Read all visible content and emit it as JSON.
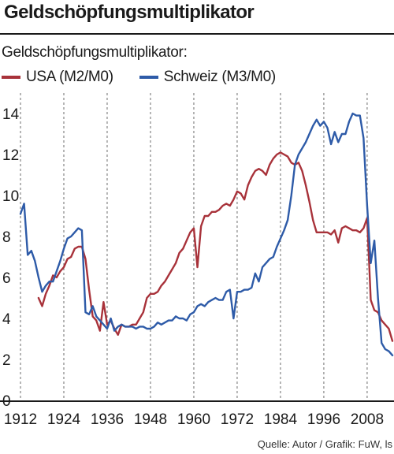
{
  "title": "Geldschöpfungsmultiplikator",
  "source": "Quelle: Autor / Grafik: FuW, ls",
  "colors": {
    "usa": "#a8323a",
    "schweiz": "#2e5ba8"
  },
  "chart_data": {
    "type": "line",
    "subtitle": "Geldschöpfungsmultiplikator:",
    "xlim": [
      1912,
      2015
    ],
    "ylim": [
      0,
      15
    ],
    "x_ticks": [
      1912,
      1924,
      1936,
      1948,
      1960,
      1972,
      1984,
      1996,
      2008
    ],
    "y_ticks": [
      0,
      2,
      4,
      6,
      8,
      10,
      12,
      14
    ],
    "grid": "vertical-dashed",
    "legend_position": "top-left",
    "series": [
      {
        "name": "USA (M2/M0)",
        "color": "#a8323a",
        "points": [
          [
            1917,
            5.0
          ],
          [
            1918,
            4.6
          ],
          [
            1919,
            5.2
          ],
          [
            1920,
            5.6
          ],
          [
            1921,
            6.1
          ],
          [
            1922,
            6.0
          ],
          [
            1923,
            6.3
          ],
          [
            1924,
            6.5
          ],
          [
            1925,
            6.9
          ],
          [
            1926,
            7.0
          ],
          [
            1927,
            7.4
          ],
          [
            1928,
            7.5
          ],
          [
            1929,
            7.5
          ],
          [
            1930,
            6.9
          ],
          [
            1931,
            5.4
          ],
          [
            1932,
            4.1
          ],
          [
            1933,
            3.9
          ],
          [
            1934,
            3.4
          ],
          [
            1935,
            4.8
          ],
          [
            1936,
            3.7
          ],
          [
            1937,
            3.9
          ],
          [
            1938,
            3.5
          ],
          [
            1939,
            3.2
          ],
          [
            1940,
            3.7
          ],
          [
            1941,
            3.6
          ],
          [
            1942,
            3.6
          ],
          [
            1943,
            3.7
          ],
          [
            1944,
            3.7
          ],
          [
            1945,
            4.0
          ],
          [
            1946,
            4.3
          ],
          [
            1947,
            5.0
          ],
          [
            1948,
            5.2
          ],
          [
            1949,
            5.2
          ],
          [
            1950,
            5.3
          ],
          [
            1951,
            5.6
          ],
          [
            1952,
            5.8
          ],
          [
            1953,
            6.1
          ],
          [
            1954,
            6.4
          ],
          [
            1955,
            6.7
          ],
          [
            1956,
            7.2
          ],
          [
            1957,
            7.4
          ],
          [
            1958,
            7.8
          ],
          [
            1959,
            8.2
          ],
          [
            1960,
            8.4
          ],
          [
            1961,
            6.5
          ],
          [
            1962,
            8.5
          ],
          [
            1963,
            9.0
          ],
          [
            1964,
            9.0
          ],
          [
            1965,
            9.2
          ],
          [
            1966,
            9.2
          ],
          [
            1967,
            9.3
          ],
          [
            1968,
            9.5
          ],
          [
            1969,
            9.6
          ],
          [
            1970,
            9.5
          ],
          [
            1971,
            9.8
          ],
          [
            1972,
            10.2
          ],
          [
            1973,
            10.1
          ],
          [
            1974,
            9.8
          ],
          [
            1975,
            10.5
          ],
          [
            1976,
            10.9
          ],
          [
            1977,
            11.2
          ],
          [
            1978,
            11.3
          ],
          [
            1979,
            11.2
          ],
          [
            1980,
            11.0
          ],
          [
            1981,
            11.5
          ],
          [
            1982,
            11.8
          ],
          [
            1983,
            12.0
          ],
          [
            1984,
            12.1
          ],
          [
            1985,
            12.0
          ],
          [
            1986,
            11.9
          ],
          [
            1987,
            11.6
          ],
          [
            1988,
            11.5
          ],
          [
            1989,
            11.6
          ],
          [
            1990,
            11.2
          ],
          [
            1991,
            10.5
          ],
          [
            1992,
            9.7
          ],
          [
            1993,
            8.8
          ],
          [
            1994,
            8.2
          ],
          [
            1995,
            8.2
          ],
          [
            1996,
            8.2
          ],
          [
            1997,
            8.2
          ],
          [
            1998,
            8.1
          ],
          [
            1999,
            8.3
          ],
          [
            2000,
            7.7
          ],
          [
            2001,
            8.4
          ],
          [
            2002,
            8.5
          ],
          [
            2003,
            8.4
          ],
          [
            2004,
            8.3
          ],
          [
            2005,
            8.3
          ],
          [
            2006,
            8.2
          ],
          [
            2007,
            8.4
          ],
          [
            2008,
            8.9
          ],
          [
            2009,
            4.9
          ],
          [
            2010,
            4.4
          ],
          [
            2011,
            4.3
          ],
          [
            2012,
            3.9
          ],
          [
            2013,
            3.7
          ],
          [
            2014,
            3.5
          ],
          [
            2015,
            2.9
          ]
        ]
      },
      {
        "name": "Schweiz (M3/M0)",
        "color": "#2e5ba8",
        "points": [
          [
            1912,
            9.1
          ],
          [
            1913,
            9.6
          ],
          [
            1914,
            7.1
          ],
          [
            1915,
            7.3
          ],
          [
            1916,
            6.8
          ],
          [
            1917,
            6.0
          ],
          [
            1918,
            5.3
          ],
          [
            1919,
            5.6
          ],
          [
            1920,
            5.8
          ],
          [
            1921,
            5.8
          ],
          [
            1922,
            6.3
          ],
          [
            1923,
            6.8
          ],
          [
            1924,
            7.4
          ],
          [
            1925,
            7.9
          ],
          [
            1926,
            8.0
          ],
          [
            1927,
            8.2
          ],
          [
            1928,
            8.4
          ],
          [
            1929,
            8.3
          ],
          [
            1930,
            4.3
          ],
          [
            1931,
            4.2
          ],
          [
            1932,
            4.6
          ],
          [
            1933,
            4.1
          ],
          [
            1934,
            3.9
          ],
          [
            1935,
            3.7
          ],
          [
            1936,
            3.5
          ],
          [
            1937,
            4.0
          ],
          [
            1938,
            3.4
          ],
          [
            1939,
            3.6
          ],
          [
            1940,
            3.7
          ],
          [
            1941,
            3.6
          ],
          [
            1942,
            3.6
          ],
          [
            1943,
            3.6
          ],
          [
            1944,
            3.5
          ],
          [
            1945,
            3.6
          ],
          [
            1946,
            3.6
          ],
          [
            1947,
            3.5
          ],
          [
            1948,
            3.5
          ],
          [
            1949,
            3.6
          ],
          [
            1950,
            3.8
          ],
          [
            1951,
            3.7
          ],
          [
            1952,
            3.8
          ],
          [
            1953,
            3.9
          ],
          [
            1954,
            3.9
          ],
          [
            1955,
            4.1
          ],
          [
            1956,
            4.0
          ],
          [
            1957,
            4.0
          ],
          [
            1958,
            3.9
          ],
          [
            1959,
            4.2
          ],
          [
            1960,
            4.3
          ],
          [
            1961,
            4.6
          ],
          [
            1962,
            4.7
          ],
          [
            1963,
            4.6
          ],
          [
            1964,
            4.8
          ],
          [
            1965,
            4.9
          ],
          [
            1966,
            5.0
          ],
          [
            1967,
            4.9
          ],
          [
            1968,
            4.9
          ],
          [
            1969,
            5.3
          ],
          [
            1970,
            5.4
          ],
          [
            1971,
            4.0
          ],
          [
            1972,
            5.3
          ],
          [
            1973,
            5.3
          ],
          [
            1974,
            5.4
          ],
          [
            1975,
            5.4
          ],
          [
            1976,
            5.5
          ],
          [
            1977,
            6.2
          ],
          [
            1978,
            5.8
          ],
          [
            1979,
            6.5
          ],
          [
            1980,
            6.7
          ],
          [
            1981,
            6.9
          ],
          [
            1982,
            7.0
          ],
          [
            1983,
            7.5
          ],
          [
            1984,
            7.9
          ],
          [
            1985,
            8.3
          ],
          [
            1986,
            8.8
          ],
          [
            1987,
            10.0
          ],
          [
            1988,
            11.5
          ],
          [
            1989,
            12.0
          ],
          [
            1990,
            12.3
          ],
          [
            1991,
            12.6
          ],
          [
            1992,
            13.0
          ],
          [
            1993,
            13.4
          ],
          [
            1994,
            13.7
          ],
          [
            1995,
            13.4
          ],
          [
            1996,
            13.6
          ],
          [
            1997,
            13.3
          ],
          [
            1998,
            12.5
          ],
          [
            1999,
            13.1
          ],
          [
            2000,
            12.6
          ],
          [
            2001,
            13.0
          ],
          [
            2002,
            13.0
          ],
          [
            2003,
            13.6
          ],
          [
            2004,
            14.0
          ],
          [
            2005,
            13.9
          ],
          [
            2006,
            13.9
          ],
          [
            2007,
            12.8
          ],
          [
            2008,
            9.5
          ],
          [
            2009,
            6.7
          ],
          [
            2010,
            7.8
          ],
          [
            2011,
            5.0
          ],
          [
            2012,
            2.8
          ],
          [
            2013,
            2.5
          ],
          [
            2014,
            2.4
          ],
          [
            2015,
            2.2
          ]
        ]
      }
    ]
  }
}
